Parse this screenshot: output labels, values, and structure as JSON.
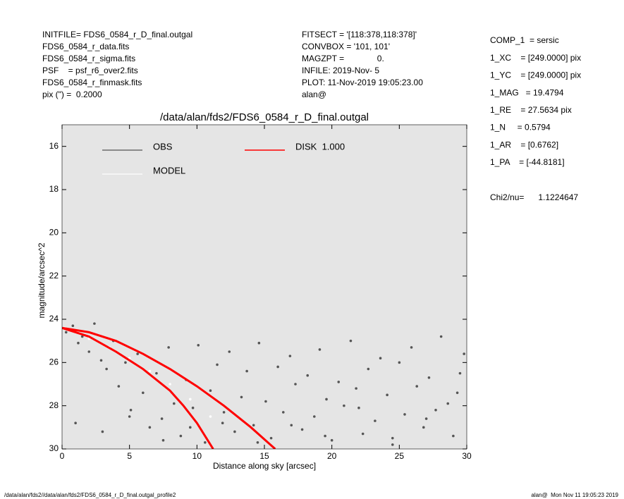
{
  "header": {
    "left": [
      "INITFILE= FDS6_0584_r_D_final.outgal",
      "FDS6_0584_r_data.fits",
      "FDS6_0584_r_sigma.fits",
      "PSF    = psf_r6_over2.fits",
      "FDS6_0584_r_finmask.fits",
      "pix (\") =  0.2000"
    ],
    "middle": [
      "FITSECT = '[118:378,118:378]'",
      "CONVBOX = '101, 101'",
      "MAGZPT =              0.",
      "INFILE: 2019-Nov- 5",
      "PLOT: 11-Nov-2019 19:05:23.00",
      "alan@"
    ],
    "right": [
      "COMP_1  = sersic",
      "1_XC    = [249.0000] pix",
      "1_YC    = [249.0000] pix",
      "1_MAG   = 19.4794",
      "1_RE    = 27.5634 pix",
      "1_N     = 0.5794",
      "1_AR    = [0.6762]",
      "1_PA    = [-44.8181]"
    ],
    "chi": "Chi2/nu=      1.1224647"
  },
  "footer": {
    "left": "/data/alan/fds2//data/alan/fds2/FDS6_0584_r_D_final.outgal_profile2",
    "right": "alan@  Mon Nov 11 19:05:23 2019"
  },
  "chart_data": {
    "type": "scatter",
    "title": "/data/alan/fds2/FDS6_0584_r_D_final.outgal",
    "xlabel": "Distance along sky [arcsec]",
    "ylabel": "magnitude/arcsec^2",
    "xlim": [
      0,
      30
    ],
    "ylim": [
      30,
      15
    ],
    "xticks": [
      0,
      5,
      10,
      15,
      20,
      25,
      30
    ],
    "yticks": [
      16,
      18,
      20,
      22,
      24,
      26,
      28,
      30
    ],
    "background": "#e5e5e5",
    "series": [
      {
        "name": "OBS",
        "color": "#555555",
        "mode": "points",
        "x": [
          0.3,
          0.8,
          1.2,
          1.5,
          2.0,
          2.4,
          2.9,
          3.3,
          3.8,
          4.2,
          4.7,
          5.1,
          5.6,
          6.0,
          6.5,
          7.0,
          7.4,
          7.9,
          8.3,
          8.8,
          9.2,
          9.7,
          10.1,
          10.6,
          11.0,
          11.5,
          11.9,
          12.4,
          12.8,
          13.3,
          13.7,
          14.2,
          14.6,
          15.1,
          15.5,
          16.0,
          16.4,
          16.9,
          17.3,
          17.8,
          18.2,
          18.7,
          19.1,
          19.6,
          20.0,
          20.5,
          20.9,
          21.4,
          21.8,
          22.3,
          22.7,
          23.2,
          23.6,
          24.1,
          24.5,
          25.0,
          25.4,
          25.9,
          26.3,
          26.8,
          27.2,
          27.7,
          28.1,
          28.6,
          29.0,
          29.5,
          29.8,
          1.0,
          3.0,
          5.0,
          7.5,
          9.5,
          12.0,
          14.5,
          17.0,
          19.5,
          22.0,
          24.5,
          27.0,
          29.3
        ],
        "values": [
          24.6,
          24.3,
          25.1,
          24.8,
          25.5,
          24.2,
          25.9,
          26.3,
          25.0,
          27.1,
          26.0,
          28.2,
          25.6,
          27.4,
          29.0,
          26.5,
          28.6,
          25.3,
          27.9,
          29.4,
          26.8,
          28.1,
          25.2,
          29.7,
          27.3,
          26.1,
          28.8,
          25.5,
          29.2,
          27.6,
          26.4,
          28.9,
          25.1,
          27.8,
          29.5,
          26.2,
          28.3,
          25.7,
          27.0,
          29.1,
          26.6,
          28.5,
          25.4,
          27.7,
          29.6,
          26.9,
          28.0,
          25.0,
          27.2,
          29.3,
          26.3,
          28.7,
          25.8,
          27.5,
          29.8,
          26.0,
          28.4,
          25.3,
          27.1,
          29.0,
          26.7,
          28.2,
          24.8,
          27.9,
          29.4,
          26.5,
          25.6,
          28.8,
          29.2,
          28.5,
          29.6,
          29.0,
          28.3,
          29.7,
          28.9,
          29.4,
          28.1,
          29.5,
          28.6,
          27.4
        ]
      },
      {
        "name": "MODEL",
        "color": "#ffffff",
        "mode": "points",
        "x": [
          0.2,
          0.5,
          1.0,
          2.0,
          3.5,
          5.0,
          6.5,
          8.0,
          9.5,
          11.0
        ],
        "values": [
          24.4,
          24.5,
          24.6,
          24.9,
          25.3,
          25.8,
          26.4,
          27.0,
          27.7,
          28.5
        ]
      },
      {
        "name": "DISK  1.000",
        "color": "#ff0000",
        "mode": "line",
        "x": [
          0,
          2,
          4,
          6,
          8,
          10,
          12,
          14,
          15.8,
          null,
          0,
          2,
          4,
          6,
          8,
          9,
          10,
          11.2
        ],
        "values": [
          24.4,
          24.6,
          25.0,
          25.6,
          26.3,
          27.1,
          28.0,
          29.0,
          30.0,
          null,
          24.4,
          24.8,
          25.5,
          26.3,
          27.3,
          28.0,
          28.8,
          30.0
        ]
      }
    ]
  }
}
